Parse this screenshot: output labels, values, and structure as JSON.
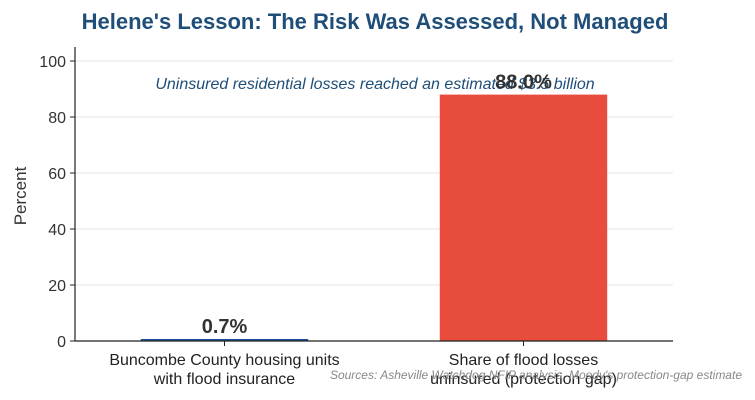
{
  "chart_data": {
    "type": "bar",
    "title": "Helene's Lesson: The Risk Was Assessed, Not Managed",
    "annotation": "Uninsured residential losses reached an estimated $3.5 billion",
    "ylabel": "Percent",
    "ylim": [
      0,
      105
    ],
    "yticks": [
      0,
      20,
      40,
      60,
      80,
      100
    ],
    "grid": true,
    "categories": [
      [
        "Buncombe County housing units",
        "with flood insurance"
      ],
      [
        "Share of flood losses",
        "uninsured (protection gap)"
      ]
    ],
    "values": [
      0.7,
      88.0
    ],
    "value_labels": [
      "0.7%",
      "88.0%"
    ],
    "colors": [
      "#1f4e99",
      "#e84c3d"
    ],
    "source": "Sources: Asheville Watchdog NFIP analysis, Moody's protection-gap estimate"
  }
}
